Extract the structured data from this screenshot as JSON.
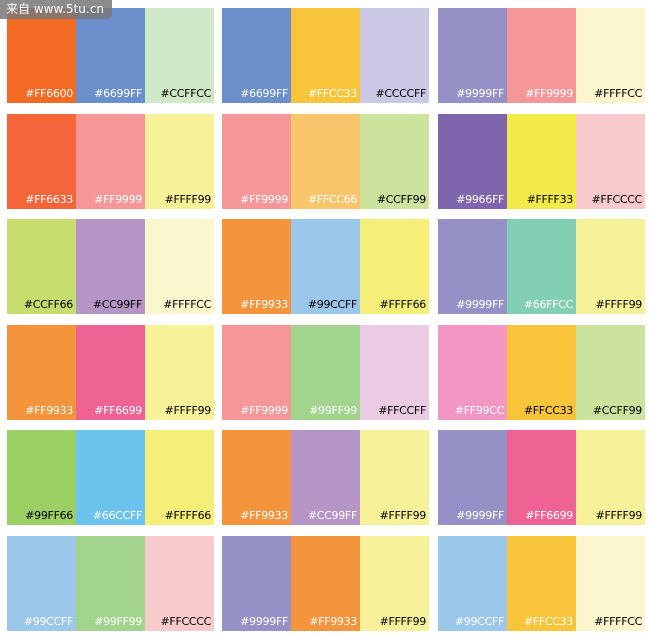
{
  "watermark": "来自 www.5tu.cn",
  "palettes": [
    [
      {
        "label": "#FF6600",
        "color": "#F26A24",
        "text_color": "#fff"
      },
      {
        "label": "#6699FF",
        "color": "#6B8FCB",
        "text_color": "#fff"
      },
      {
        "label": "#CCFFCC",
        "color": "#CEE8C8",
        "text_color": "#000"
      }
    ],
    [
      {
        "label": "#6699FF",
        "color": "#6B8FCB",
        "text_color": "#fff"
      },
      {
        "label": "#FFCC33",
        "color": "#F8C43A",
        "text_color": "#fff"
      },
      {
        "label": "#CCCCFF",
        "color": "#CBC8E6",
        "text_color": "#000"
      }
    ],
    [
      {
        "label": "#9999FF",
        "color": "#9591C6",
        "text_color": "#fff"
      },
      {
        "label": "#FF9999",
        "color": "#F59699",
        "text_color": "#fff"
      },
      {
        "label": "#FFFFCC",
        "color": "#FBF6CD",
        "text_color": "#000"
      }
    ],
    [
      {
        "label": "#FF6633",
        "color": "#F4663A",
        "text_color": "#fff"
      },
      {
        "label": "#FF9999",
        "color": "#F59699",
        "text_color": "#fff"
      },
      {
        "label": "#FFFF99",
        "color": "#F7F29A",
        "text_color": "#000"
      }
    ],
    [
      {
        "label": "#FF9999",
        "color": "#F59699",
        "text_color": "#fff"
      },
      {
        "label": "#FFCC66",
        "color": "#F9C56A",
        "text_color": "#fff"
      },
      {
        "label": "#CCFF99",
        "color": "#CCE39D",
        "text_color": "#000"
      }
    ],
    [
      {
        "label": "#9966FF",
        "color": "#7F65AE",
        "text_color": "#fff"
      },
      {
        "label": "#FFFF33",
        "color": "#F2EB4A",
        "text_color": "#000"
      },
      {
        "label": "#FFCCCC",
        "color": "#F9CACC",
        "text_color": "#000"
      }
    ],
    [
      {
        "label": "#CCFF66",
        "color": "#C7DE6E",
        "text_color": "#000"
      },
      {
        "label": "#CC99FF",
        "color": "#B594C6",
        "text_color": "#000"
      },
      {
        "label": "#FFFFCC",
        "color": "#FBF6CD",
        "text_color": "#000"
      }
    ],
    [
      {
        "label": "#FF9933",
        "color": "#F4953D",
        "text_color": "#fff"
      },
      {
        "label": "#99CCFF",
        "color": "#9BC7EA",
        "text_color": "#000"
      },
      {
        "label": "#FFFF66",
        "color": "#F5EE78",
        "text_color": "#000"
      }
    ],
    [
      {
        "label": "#9999FF",
        "color": "#9591C6",
        "text_color": "#fff"
      },
      {
        "label": "#66FFCC",
        "color": "#83CFB3",
        "text_color": "#fff"
      },
      {
        "label": "#FFFF99",
        "color": "#F7F29A",
        "text_color": "#000"
      }
    ],
    [
      {
        "label": "#FF9933",
        "color": "#F4953D",
        "text_color": "#fff"
      },
      {
        "label": "#FF6699",
        "color": "#EF6394",
        "text_color": "#fff"
      },
      {
        "label": "#FFFF99",
        "color": "#F7F29A",
        "text_color": "#000"
      }
    ],
    [
      {
        "label": "#FF9999",
        "color": "#F59699",
        "text_color": "#fff"
      },
      {
        "label": "#99FF99",
        "color": "#A2D48E",
        "text_color": "#fff"
      },
      {
        "label": "#FFCCFF",
        "color": "#EBCAE3",
        "text_color": "#000"
      }
    ],
    [
      {
        "label": "#FF99CC",
        "color": "#F297C4",
        "text_color": "#fff"
      },
      {
        "label": "#FFCC33",
        "color": "#F8C43A",
        "text_color": "#000"
      },
      {
        "label": "#CCFF99",
        "color": "#CCE39D",
        "text_color": "#000"
      }
    ],
    [
      {
        "label": "#99FF66",
        "color": "#9CCF64",
        "text_color": "#000"
      },
      {
        "label": "#66CCFF",
        "color": "#6CC3EE",
        "text_color": "#fff"
      },
      {
        "label": "#FFFF66",
        "color": "#F5EE78",
        "text_color": "#000"
      }
    ],
    [
      {
        "label": "#FF9933",
        "color": "#F4953D",
        "text_color": "#fff"
      },
      {
        "label": "#CC99FF",
        "color": "#B594C6",
        "text_color": "#fff"
      },
      {
        "label": "#FFFF99",
        "color": "#F7F29A",
        "text_color": "#000"
      }
    ],
    [
      {
        "label": "#9999FF",
        "color": "#9591C6",
        "text_color": "#fff"
      },
      {
        "label": "#FF6699",
        "color": "#EF6394",
        "text_color": "#fff"
      },
      {
        "label": "#FFFF99",
        "color": "#F7F29A",
        "text_color": "#000"
      }
    ],
    [
      {
        "label": "#99CCFF",
        "color": "#9BC7EA",
        "text_color": "#fff"
      },
      {
        "label": "#99FF99",
        "color": "#A2D48E",
        "text_color": "#fff"
      },
      {
        "label": "#FFCCCC",
        "color": "#F9CACC",
        "text_color": "#000"
      }
    ],
    [
      {
        "label": "#9999FF",
        "color": "#9591C6",
        "text_color": "#fff"
      },
      {
        "label": "#FF9933",
        "color": "#F4953D",
        "text_color": "#fff"
      },
      {
        "label": "#FFFF99",
        "color": "#F7F29A",
        "text_color": "#000"
      }
    ],
    [
      {
        "label": "#99CCFF",
        "color": "#9BC7EA",
        "text_color": "#fff"
      },
      {
        "label": "#FFCC33",
        "color": "#F8C43A",
        "text_color": "#fff"
      },
      {
        "label": "#FFFFCC",
        "color": "#FBF6CD",
        "text_color": "#000"
      }
    ]
  ]
}
